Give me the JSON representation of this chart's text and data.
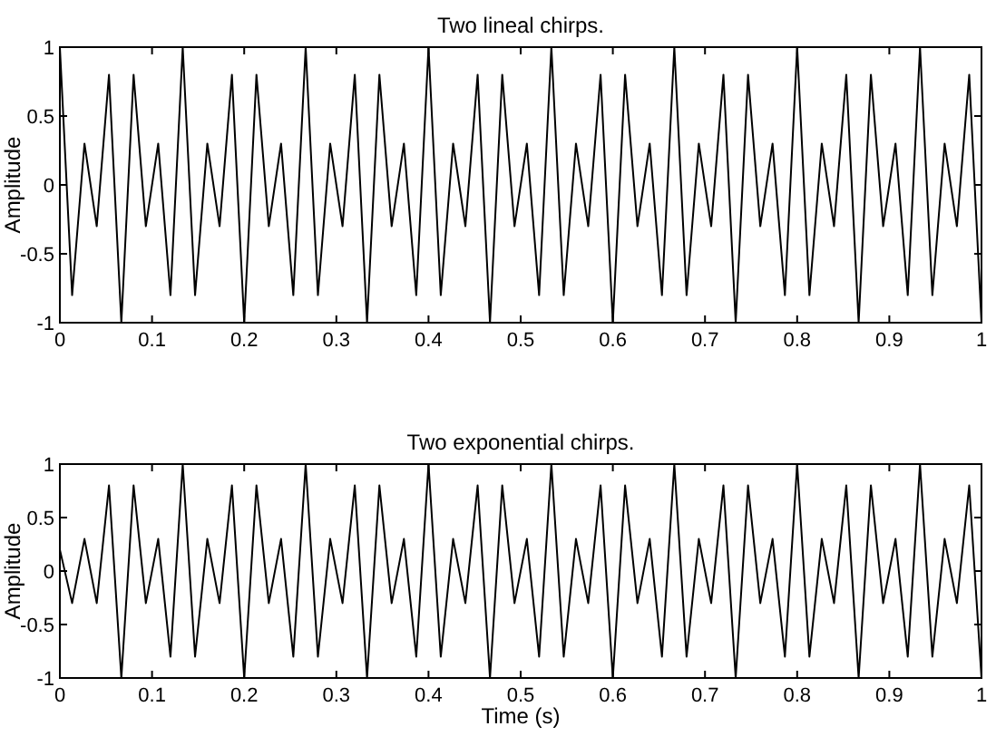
{
  "chart_data": [
    {
      "type": "line",
      "title": "Two lineal chirps.",
      "ylabel": "Amplitude",
      "xlim": [
        0,
        1
      ],
      "ylim": [
        -1,
        1
      ],
      "xticks": [
        0,
        0.1,
        0.2,
        0.3,
        0.4,
        0.5,
        0.6,
        0.7,
        0.8,
        0.9,
        1
      ],
      "yticks": [
        -1,
        -0.5,
        0,
        0.5,
        1
      ],
      "x": [
        0,
        0.0133,
        0.0267,
        0.04,
        0.0533,
        0.0667,
        0.08,
        0.0933,
        0.1067,
        0.12,
        0.1333,
        0.1467,
        0.16,
        0.1733,
        0.1867,
        0.2,
        0.2133,
        0.2267,
        0.24,
        0.2533,
        0.2667,
        0.28,
        0.2933,
        0.3067,
        0.32,
        0.3333,
        0.3467,
        0.36,
        0.3733,
        0.3867,
        0.4,
        0.4133,
        0.4267,
        0.44,
        0.4533,
        0.4667,
        0.48,
        0.4933,
        0.5067,
        0.52,
        0.5333,
        0.5467,
        0.56,
        0.5733,
        0.5867,
        0.6,
        0.6133,
        0.6267,
        0.64,
        0.6533,
        0.6667,
        0.68,
        0.6933,
        0.7067,
        0.72,
        0.7333,
        0.7467,
        0.76,
        0.7733,
        0.7867,
        0.8,
        0.8133,
        0.8267,
        0.84,
        0.8533,
        0.8667,
        0.88,
        0.8933,
        0.9067,
        0.92,
        0.9333,
        0.9467,
        0.96,
        0.9733,
        0.9867,
        1
      ],
      "series": [
        {
          "color": "#000000",
          "values": [
            1,
            -0.8,
            0.3,
            -0.3,
            0.8,
            -1,
            0.8,
            -0.3,
            0.3,
            -0.8,
            1,
            -0.8,
            0.3,
            -0.3,
            0.8,
            -1,
            0.8,
            -0.3,
            0.3,
            -0.8,
            1,
            -0.8,
            0.3,
            -0.3,
            0.8,
            -1,
            0.8,
            -0.3,
            0.3,
            -0.8,
            1,
            -0.8,
            0.3,
            -0.3,
            0.8,
            -1,
            0.8,
            -0.3,
            0.3,
            -0.8,
            1,
            -0.8,
            0.3,
            -0.3,
            0.8,
            -1,
            0.8,
            -0.3,
            0.3,
            -0.8,
            1,
            -0.8,
            0.3,
            -0.3,
            0.8,
            -1,
            0.8,
            -0.3,
            0.3,
            -0.8,
            1,
            -0.8,
            0.3,
            -0.3,
            0.8,
            -1,
            0.8,
            -0.3,
            0.3,
            -0.8,
            1,
            -0.8,
            0.3,
            -0.3,
            0.8,
            -1
          ]
        }
      ]
    },
    {
      "type": "line",
      "title": "Two exponential chirps.",
      "ylabel": "Amplitude",
      "xlabel": "Time (s)",
      "xlim": [
        0,
        1
      ],
      "ylim": [
        -1,
        1
      ],
      "xticks": [
        0,
        0.1,
        0.2,
        0.3,
        0.4,
        0.5,
        0.6,
        0.7,
        0.8,
        0.9,
        1
      ],
      "yticks": [
        -1,
        -0.5,
        0,
        0.5,
        1
      ],
      "x": [
        0,
        0.0133,
        0.0267,
        0.04,
        0.0533,
        0.0667,
        0.08,
        0.0933,
        0.1067,
        0.12,
        0.1333,
        0.1467,
        0.16,
        0.1733,
        0.1867,
        0.2,
        0.2133,
        0.2267,
        0.24,
        0.2533,
        0.2667,
        0.28,
        0.2933,
        0.3067,
        0.32,
        0.3333,
        0.3467,
        0.36,
        0.3733,
        0.3867,
        0.4,
        0.4133,
        0.4267,
        0.44,
        0.4533,
        0.4667,
        0.48,
        0.4933,
        0.5067,
        0.52,
        0.5333,
        0.5467,
        0.56,
        0.5733,
        0.5867,
        0.6,
        0.6133,
        0.6267,
        0.64,
        0.6533,
        0.6667,
        0.68,
        0.6933,
        0.7067,
        0.72,
        0.7333,
        0.7467,
        0.76,
        0.7733,
        0.7867,
        0.8,
        0.8133,
        0.8267,
        0.84,
        0.8533,
        0.8667,
        0.88,
        0.8933,
        0.9067,
        0.92,
        0.9333,
        0.9467,
        0.96,
        0.9733,
        0.9867,
        1
      ],
      "series": [
        {
          "color": "#000000",
          "values": [
            0.2,
            -0.3,
            0.3,
            -0.3,
            0.8,
            -1,
            0.8,
            -0.3,
            0.3,
            -0.8,
            1,
            -0.8,
            0.3,
            -0.3,
            0.8,
            -1,
            0.8,
            -0.3,
            0.3,
            -0.8,
            1,
            -0.8,
            0.3,
            -0.3,
            0.8,
            -1,
            0.8,
            -0.3,
            0.3,
            -0.8,
            1,
            -0.8,
            0.3,
            -0.3,
            0.8,
            -1,
            0.8,
            -0.3,
            0.3,
            -0.8,
            1,
            -0.8,
            0.3,
            -0.3,
            0.8,
            -1,
            0.8,
            -0.3,
            0.3,
            -0.8,
            1,
            -0.8,
            0.3,
            -0.3,
            0.8,
            -1,
            0.8,
            -0.3,
            0.3,
            -0.8,
            1,
            -0.8,
            0.3,
            -0.3,
            0.8,
            -1,
            0.8,
            -0.3,
            0.3,
            -0.8,
            1,
            -0.8,
            0.3,
            -0.3,
            0.8,
            -1
          ]
        }
      ]
    }
  ]
}
